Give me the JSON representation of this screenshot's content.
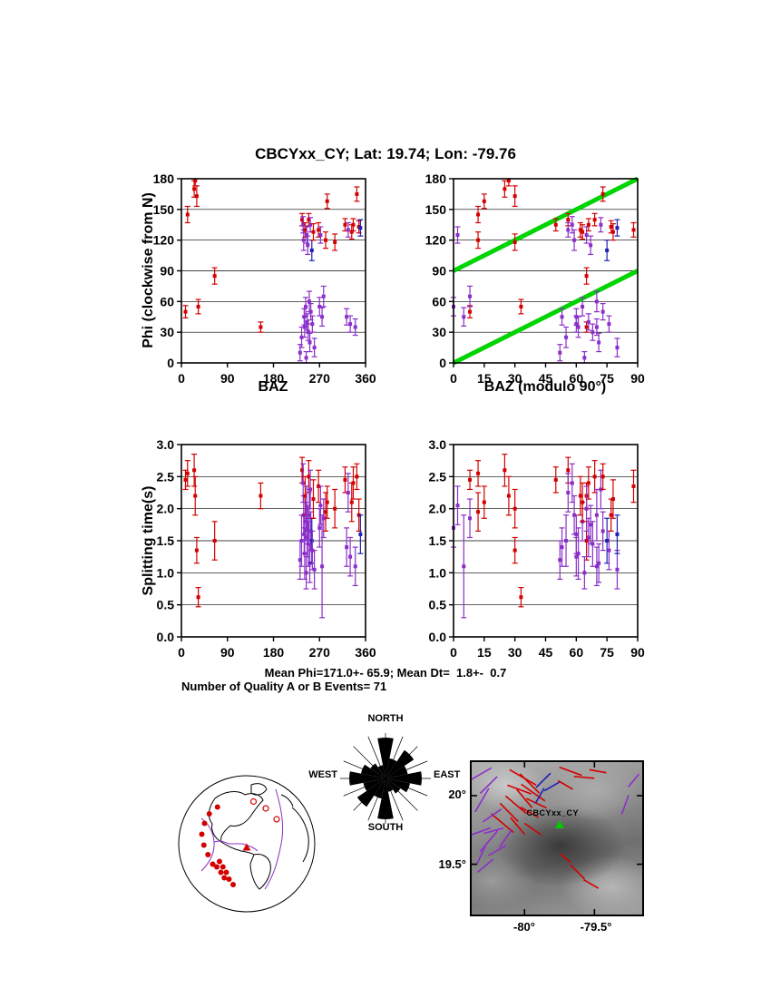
{
  "title": "CBCYxx_CY; Lat:  19.74;  Lon:  -79.76",
  "stats": {
    "line1": "Mean Phi=171.0+- 65.9; Mean Dt=  1.8+-  0.7",
    "line2": "Number of Quality A or B Events= 71"
  },
  "labels": {
    "phi_axis": "Phi (clockwise from N)",
    "dt_axis": "Splitting time(s)",
    "baz": "BAZ",
    "baz_mod": "BAZ (modulo 90°)"
  },
  "colors": {
    "red": "#d40000",
    "purple": "#8b2fc9",
    "blue": "#1f1fb4",
    "green": "#00d400",
    "station_green": "#00cc00",
    "frame": "#000000"
  },
  "chart_data": [
    {
      "id": "plot-phi-baz",
      "type": "scatter",
      "xlabel": "BAZ",
      "ylabel": "Phi (clockwise from N)",
      "xlim": [
        0,
        360
      ],
      "ylim": [
        0,
        180
      ],
      "xticks": [
        0,
        90,
        180,
        270,
        360
      ],
      "xtick_labels": [
        "0",
        "90",
        "180",
        "270",
        "360"
      ],
      "yticks": [
        0,
        30,
        60,
        90,
        120,
        150,
        180
      ],
      "ytick_labels": [
        "0",
        "30",
        "60",
        "90",
        "120",
        "150",
        "180"
      ],
      "x_field": "baz",
      "y_field": "phi",
      "err_field": "phi_err",
      "grid": true
    },
    {
      "id": "plot-phi-baz90",
      "type": "scatter",
      "xlabel": "BAZ (modulo 90°)",
      "ylabel": "",
      "xlim": [
        0,
        90
      ],
      "ylim": [
        0,
        180
      ],
      "xticks": [
        0,
        15,
        30,
        45,
        60,
        75,
        90
      ],
      "xtick_labels": [
        "0",
        "15",
        "30",
        "45",
        "60",
        "75",
        "90"
      ],
      "yticks": [
        0,
        30,
        60,
        90,
        120,
        150,
        180
      ],
      "ytick_labels": [
        "0",
        "30",
        "60",
        "90",
        "120",
        "150",
        "180"
      ],
      "x_field": "baz_mod90",
      "y_field": "phi",
      "err_field": "phi_err",
      "grid": true,
      "green_lines": [
        [
          0,
          0,
          90,
          90
        ],
        [
          0,
          90,
          90,
          180
        ]
      ]
    },
    {
      "id": "plot-dt-baz",
      "type": "scatter",
      "xlabel": "",
      "ylabel": "Splitting time(s)",
      "xlim": [
        0,
        360
      ],
      "ylim": [
        0,
        3
      ],
      "xticks": [
        0,
        90,
        180,
        270,
        360
      ],
      "xtick_labels": [
        "0",
        "90",
        "180",
        "270",
        "360"
      ],
      "yticks": [
        0,
        0.5,
        1,
        1.5,
        2,
        2.5,
        3
      ],
      "ytick_labels": [
        "0.0",
        "0.5",
        "1.0",
        "1.5",
        "2.0",
        "2.5",
        "3.0"
      ],
      "x_field": "baz",
      "y_field": "dt",
      "err_field": "dt_err",
      "grid": true
    },
    {
      "id": "plot-dt-baz90",
      "type": "scatter",
      "xlabel": "",
      "ylabel": "",
      "xlim": [
        0,
        90
      ],
      "ylim": [
        0,
        3
      ],
      "xticks": [
        0,
        15,
        30,
        45,
        60,
        75,
        90
      ],
      "xtick_labels": [
        "0",
        "15",
        "30",
        "45",
        "60",
        "75",
        "90"
      ],
      "yticks": [
        0,
        0.5,
        1,
        1.5,
        2,
        2.5,
        3
      ],
      "ytick_labels": [
        "0.0",
        "0.5",
        "1.0",
        "1.5",
        "2.0",
        "2.5",
        "3.0"
      ],
      "x_field": "baz_mod90",
      "y_field": "dt",
      "err_field": "dt_err",
      "grid": true
    }
  ],
  "events": [
    [
      8,
      50,
      6,
      2.45,
      0.15,
      "r"
    ],
    [
      12,
      145,
      8,
      2.55,
      0.2,
      "r"
    ],
    [
      25,
      170,
      8,
      2.6,
      0.25,
      "r"
    ],
    [
      27,
      178,
      5,
      2.2,
      0.3,
      "r"
    ],
    [
      30,
      163,
      10,
      1.35,
      0.2,
      "r"
    ],
    [
      33,
      55,
      7,
      0.62,
      0.15,
      "r"
    ],
    [
      65,
      85,
      8,
      1.5,
      0.3,
      "r"
    ],
    [
      155,
      35,
      5,
      2.2,
      0.2,
      "r"
    ],
    [
      232,
      10,
      8,
      1.2,
      0.3,
      "p"
    ],
    [
      235,
      25,
      10,
      1.5,
      0.4,
      "p"
    ],
    [
      236,
      140,
      6,
      2.6,
      0.2,
      "r"
    ],
    [
      238,
      135,
      8,
      2.4,
      0.3,
      "p"
    ],
    [
      239,
      120,
      10,
      1.9,
      0.3,
      "p"
    ],
    [
      240,
      45,
      8,
      1.6,
      0.3,
      "p"
    ],
    [
      241,
      35,
      10,
      1.3,
      0.4,
      "p"
    ],
    [
      242,
      130,
      7,
      2.2,
      0.3,
      "r"
    ],
    [
      243,
      55,
      9,
      1.8,
      0.3,
      "p"
    ],
    [
      244,
      5,
      6,
      1.0,
      0.25,
      "p"
    ],
    [
      245,
      125,
      8,
      2.0,
      0.35,
      "p"
    ],
    [
      246,
      40,
      8,
      1.55,
      0.3,
      "p"
    ],
    [
      247,
      115,
      9,
      1.75,
      0.3,
      "p"
    ],
    [
      248,
      30,
      8,
      1.45,
      0.35,
      "p"
    ],
    [
      249,
      140,
      6,
      2.5,
      0.25,
      "r"
    ],
    [
      250,
      60,
      10,
      1.9,
      0.4,
      "p"
    ],
    [
      251,
      20,
      9,
      1.15,
      0.3,
      "p"
    ],
    [
      252,
      135,
      7,
      2.3,
      0.3,
      "p"
    ],
    [
      253,
      50,
      8,
      1.65,
      0.3,
      "p"
    ],
    [
      255,
      110,
      10,
      1.5,
      0.35,
      "b"
    ],
    [
      256,
      38,
      8,
      1.35,
      0.3,
      "p"
    ],
    [
      258,
      128,
      8,
      2.15,
      0.3,
      "r"
    ],
    [
      260,
      15,
      9,
      1.05,
      0.3,
      "p"
    ],
    [
      268,
      130,
      7,
      2.35,
      0.25,
      "r"
    ],
    [
      270,
      55,
      9,
      1.7,
      0.3,
      "p"
    ],
    [
      272,
      125,
      8,
      2.05,
      0.3,
      "p"
    ],
    [
      275,
      45,
      9,
      1.1,
      0.8,
      "p"
    ],
    [
      278,
      65,
      10,
      1.85,
      0.3,
      "p"
    ],
    [
      282,
      120,
      8,
      1.95,
      0.3,
      "r"
    ],
    [
      285,
      158,
      7,
      2.1,
      0.25,
      "r"
    ],
    [
      300,
      118,
      8,
      2.0,
      0.3,
      "r"
    ],
    [
      320,
      135,
      6,
      2.45,
      0.2,
      "r"
    ],
    [
      323,
      45,
      8,
      1.4,
      0.3,
      "p"
    ],
    [
      326,
      130,
      7,
      2.25,
      0.3,
      "p"
    ],
    [
      330,
      38,
      8,
      1.25,
      0.3,
      "p"
    ],
    [
      333,
      128,
      7,
      2.1,
      0.3,
      "r"
    ],
    [
      336,
      135,
      6,
      2.4,
      0.25,
      "r"
    ],
    [
      340,
      35,
      8,
      1.1,
      0.3,
      "p"
    ],
    [
      343,
      165,
      7,
      2.5,
      0.2,
      "r"
    ],
    [
      347,
      133,
      6,
      1.9,
      0.25,
      "r"
    ],
    [
      350,
      132,
      8,
      1.6,
      0.3,
      "b"
    ]
  ],
  "rose": {
    "labels": {
      "north": "NORTH",
      "south": "SOUTH",
      "east": "EAST",
      "west": "WEST"
    },
    "values": [
      0.9,
      0.45,
      0.75,
      0.5,
      0.8,
      0.55,
      0.4,
      0.3,
      0.9,
      0.45,
      0.75,
      0.5,
      0.8,
      0.55,
      0.4,
      0.3
    ]
  },
  "globe": {
    "events": [
      [
        -0.62,
        -0.3
      ],
      [
        -0.66,
        -0.14
      ],
      [
        -0.63,
        0.02
      ],
      [
        -0.57,
        0.16
      ],
      [
        -0.5,
        0.3
      ],
      [
        -0.55,
        -0.44
      ],
      [
        -0.43,
        -0.54
      ],
      [
        -0.44,
        0.34
      ],
      [
        -0.38,
        0.42
      ],
      [
        -0.33,
        0.5
      ],
      [
        -0.4,
        0.26
      ],
      [
        -0.35,
        0.34
      ],
      [
        -0.3,
        0.42
      ],
      [
        -0.26,
        0.52
      ],
      [
        -0.2,
        0.6
      ],
      [
        0.28,
        -0.52,
        1
      ],
      [
        0.44,
        -0.36,
        1
      ],
      [
        0.1,
        -0.62,
        1
      ]
    ],
    "station": [
      0.0,
      0.06
    ]
  },
  "map": {
    "station_label": "CBCYxx_CY",
    "station_pos": [
      0.515,
      0.436
    ],
    "yticks": [
      "20°",
      "19.5°"
    ],
    "ytick_pos": [
      0.22,
      0.67
    ],
    "xticks": [
      "-80°",
      "-79.5°"
    ],
    "xtick_pos": [
      0.31,
      0.72
    ],
    "bars": [
      [
        0.3,
        0.1,
        120,
        0.18,
        "r"
      ],
      [
        0.34,
        0.14,
        135,
        0.16,
        "r"
      ],
      [
        0.28,
        0.18,
        110,
        0.15,
        "r"
      ],
      [
        0.36,
        0.2,
        125,
        0.17,
        "r"
      ],
      [
        0.31,
        0.24,
        140,
        0.14,
        "r"
      ],
      [
        0.26,
        0.28,
        130,
        0.16,
        "r"
      ],
      [
        0.38,
        0.27,
        115,
        0.13,
        "r"
      ],
      [
        0.22,
        0.33,
        135,
        0.15,
        "r"
      ],
      [
        0.34,
        0.33,
        120,
        0.12,
        "r"
      ],
      [
        0.18,
        0.4,
        130,
        0.17,
        "r"
      ],
      [
        0.27,
        0.42,
        140,
        0.13,
        "r"
      ],
      [
        0.36,
        0.44,
        125,
        0.12,
        "r"
      ],
      [
        0.05,
        0.08,
        60,
        0.15,
        "p"
      ],
      [
        0.1,
        0.15,
        45,
        0.14,
        "p"
      ],
      [
        0.06,
        0.25,
        30,
        0.16,
        "p"
      ],
      [
        0.12,
        0.35,
        55,
        0.13,
        "p"
      ],
      [
        0.04,
        0.46,
        70,
        0.15,
        "p"
      ],
      [
        0.1,
        0.52,
        40,
        0.16,
        "p"
      ],
      [
        0.06,
        0.6,
        25,
        0.14,
        "p"
      ],
      [
        0.15,
        0.58,
        60,
        0.12,
        "p"
      ],
      [
        0.2,
        0.5,
        35,
        0.13,
        "p"
      ],
      [
        0.13,
        0.45,
        75,
        0.12,
        "p"
      ],
      [
        0.08,
        0.68,
        50,
        0.12,
        "p"
      ],
      [
        0.42,
        0.12,
        45,
        0.12,
        "b"
      ],
      [
        0.47,
        0.16,
        60,
        0.1,
        "b"
      ],
      [
        0.4,
        0.22,
        30,
        0.1,
        "b"
      ],
      [
        0.58,
        0.06,
        110,
        0.14,
        "r"
      ],
      [
        0.66,
        0.1,
        95,
        0.12,
        "r"
      ],
      [
        0.55,
        0.15,
        120,
        0.1,
        "r"
      ],
      [
        0.74,
        0.06,
        100,
        0.1,
        "r"
      ],
      [
        0.62,
        0.72,
        135,
        0.12,
        "r"
      ],
      [
        0.7,
        0.8,
        120,
        0.1,
        "r"
      ],
      [
        0.55,
        0.63,
        130,
        0.08,
        "r"
      ],
      [
        0.9,
        0.28,
        20,
        0.12,
        "p"
      ],
      [
        0.95,
        0.12,
        40,
        0.1,
        "p"
      ]
    ]
  }
}
